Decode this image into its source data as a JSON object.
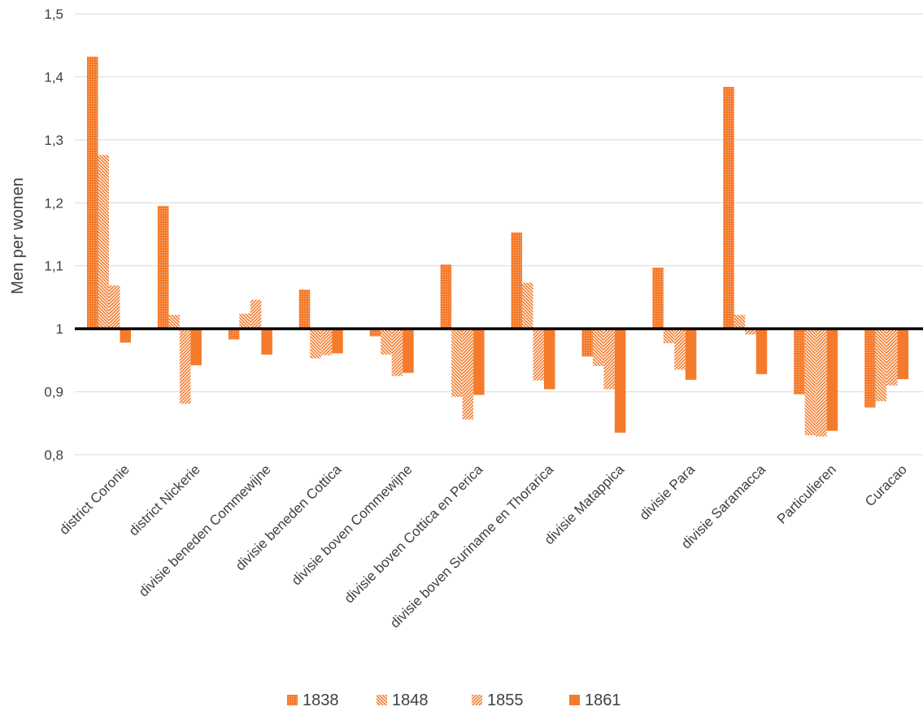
{
  "chart_data": {
    "type": "bar",
    "ylabel": "Men per women",
    "ylim": [
      0.8,
      1.5
    ],
    "yticks": [
      "0,8",
      "0,9",
      "1",
      "1,1",
      "1,2",
      "1,3",
      "1,4",
      "1,5"
    ],
    "baseline": 1,
    "grid": true,
    "legend_position": "bottom",
    "categories": [
      "district Coronie",
      "district Nickerie",
      "divisie beneden Commewijne",
      "divisie beneden Cottica",
      "divisie boven Commewijne",
      "divisie boven Cottica en Perica",
      "divisie boven Suriname en Thorarica",
      "divisie Matappica",
      "divisie Para",
      "divisie Saramacca",
      "Particulieren",
      "Curacao"
    ],
    "series": [
      {
        "name": "1838",
        "pattern": "dots",
        "values": [
          1.432,
          1.195,
          0.983,
          1.062,
          0.988,
          1.102,
          1.153,
          0.956,
          1.097,
          1.384,
          0.896,
          0.875
        ]
      },
      {
        "name": "1848",
        "pattern": "diag-down",
        "values": [
          1.276,
          1.022,
          1.024,
          0.953,
          0.959,
          0.892,
          1.073,
          0.941,
          0.977,
          1.022,
          0.831,
          0.885
        ]
      },
      {
        "name": "1855",
        "pattern": "diag-up",
        "values": [
          1.069,
          0.881,
          1.046,
          0.958,
          0.925,
          0.856,
          0.918,
          0.904,
          0.935,
          0.991,
          0.829,
          0.91
        ]
      },
      {
        "name": "1861",
        "pattern": "solid",
        "values": [
          0.978,
          0.942,
          0.959,
          0.961,
          0.93,
          0.895,
          0.904,
          0.835,
          0.919,
          0.928,
          0.838,
          0.92
        ]
      }
    ],
    "colors": {
      "bar": "#f57b2c",
      "baseline": "#000000",
      "grid": "#d9d9d9",
      "text": "#404040"
    }
  }
}
